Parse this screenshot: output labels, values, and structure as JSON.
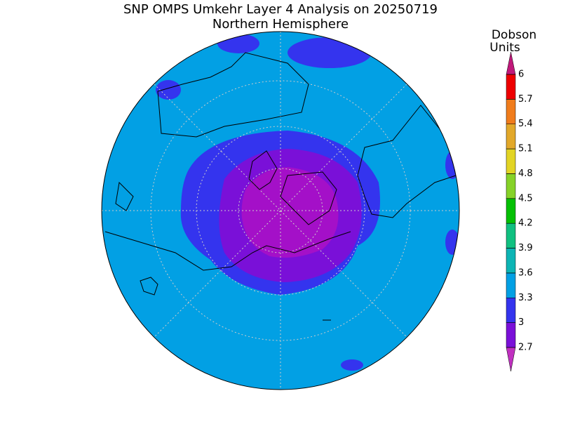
{
  "header": {
    "title": "SNP OMPS Umkehr Layer 4 Analysis on 20250719",
    "subtitle": "Northern Hemisphere"
  },
  "colorbar": {
    "label": [
      "Dobson",
      "Units"
    ],
    "levels": [
      2.7,
      3,
      3.3,
      3.6,
      3.9,
      4.2,
      4.5,
      4.8,
      5.1,
      5.4,
      5.7,
      6
    ],
    "colors": [
      "#7a10d8",
      "#3434ee",
      "#02a0e4",
      "#0cb4b4",
      "#10c080",
      "#04c004",
      "#86d228",
      "#e2d424",
      "#e2a82a",
      "#f07c1c",
      "#ee0000"
    ],
    "extend_low": "#c030c0",
    "extend_high": "#c0187a"
  }
}
